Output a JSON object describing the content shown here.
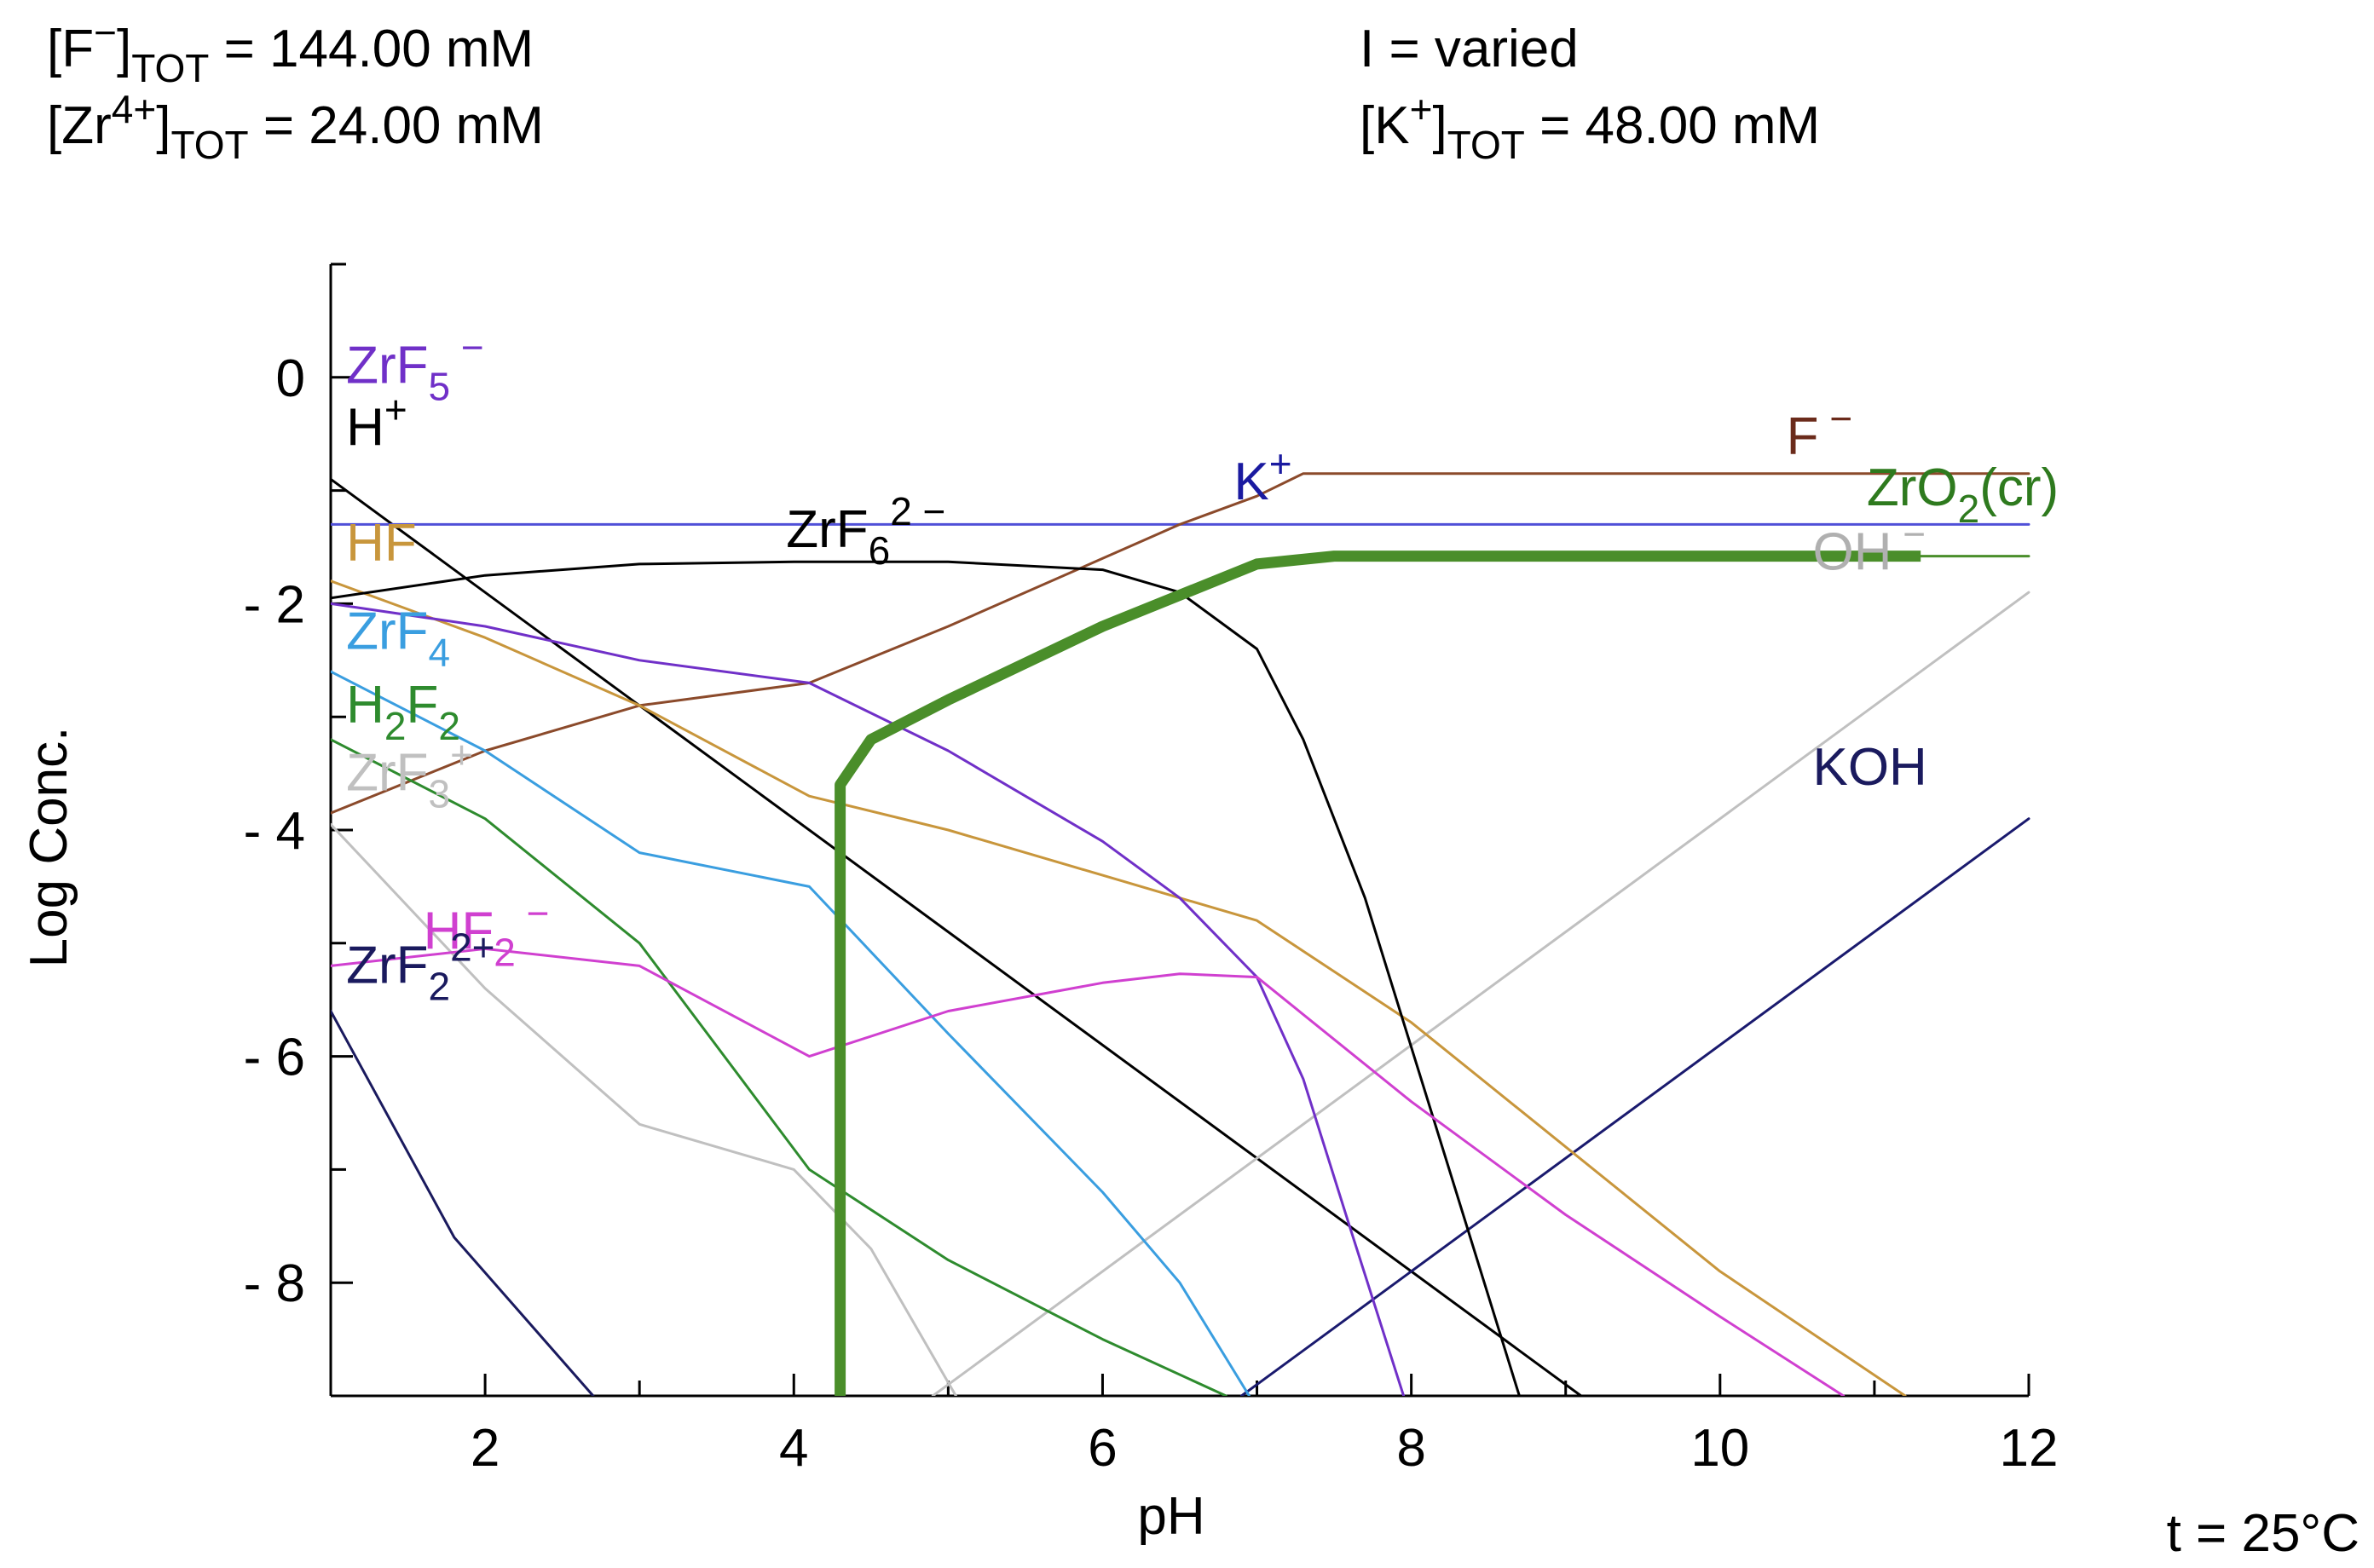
{
  "header": {
    "f_tot": {
      "base": "[F",
      "sup": "−",
      "close": "]",
      "sub": "TOT",
      "eq": " =  ",
      "value": "144.00 mM"
    },
    "zr_tot": {
      "base": "[Zr",
      "sup": "4+",
      "close": "]",
      "sub": "TOT",
      "eq": " =   ",
      "value": "24.00 mM"
    },
    "ionic": "I = varied",
    "k_tot": {
      "base": "[K",
      "sup": "+",
      "close": "]",
      "sub": "TOT",
      "eq": " =   ",
      "value": "48.00 mM"
    }
  },
  "temperature": "t = 25°C",
  "chart_data": {
    "type": "line",
    "title": "",
    "xlabel": "pH",
    "ylabel": "Log Conc.",
    "xlim": [
      1,
      12
    ],
    "ylim": [
      -9,
      1
    ],
    "xticks": [
      2,
      4,
      6,
      8,
      10,
      12
    ],
    "yticks": [
      0,
      -2,
      -4,
      -6,
      -8
    ],
    "ytick_labels": [
      "0",
      "- 2",
      "- 4",
      "- 6",
      "- 8"
    ],
    "xtick_labels": [
      "2",
      "4",
      "6",
      "8",
      "10",
      "12"
    ],
    "series": [
      {
        "name": "H+",
        "color": "#000000",
        "width": 3,
        "x": [
          1,
          9.1
        ],
        "y": [
          -0.9,
          -9.0
        ]
      },
      {
        "name": "OH-",
        "color": "#c0c0c0",
        "width": 3,
        "x": [
          4.9,
          12
        ],
        "y": [
          -9.0,
          -1.9
        ]
      },
      {
        "name": "K+",
        "color": "#5050d8",
        "width": 3,
        "x": [
          1,
          12
        ],
        "y": [
          -1.3,
          -1.3
        ]
      },
      {
        "name": "KOH",
        "color": "#1a1a6e",
        "width": 3,
        "x": [
          6.9,
          12
        ],
        "y": [
          -9.0,
          -3.9
        ]
      },
      {
        "name": "F-",
        "color": "#8b4a2b",
        "width": 3,
        "x": [
          1,
          2,
          3,
          4.1,
          5,
          6,
          6.5,
          7,
          7.3,
          12
        ],
        "y": [
          -3.85,
          -3.3,
          -2.9,
          -2.7,
          -2.2,
          -1.6,
          -1.3,
          -1.05,
          -0.85,
          -0.85
        ]
      },
      {
        "name": "HF",
        "color": "#c8963c",
        "width": 3,
        "x": [
          1,
          2,
          3,
          4.1,
          5,
          6,
          7,
          8,
          9,
          10,
          11.2
        ],
        "y": [
          -1.8,
          -2.3,
          -2.9,
          -3.7,
          -4.0,
          -4.4,
          -4.8,
          -5.7,
          -6.8,
          -7.9,
          -9.0
        ]
      },
      {
        "name": "ZrF6 2-",
        "color": "#000000",
        "width": 3,
        "x": [
          1,
          2,
          3,
          4,
          5,
          6,
          6.5,
          7,
          7.3,
          7.7,
          8.2,
          8.7
        ],
        "y": [
          -1.95,
          -1.75,
          -1.65,
          -1.63,
          -1.63,
          -1.7,
          -1.9,
          -2.4,
          -3.2,
          -4.6,
          -6.8,
          -9.0
        ]
      },
      {
        "name": "ZrF5 -",
        "color": "#7030c8",
        "width": 3,
        "x": [
          1,
          2,
          3,
          4.1,
          5,
          6,
          6.5,
          7,
          7.3,
          7.6,
          7.95
        ],
        "y": [
          -2.0,
          -2.2,
          -2.5,
          -2.7,
          -3.3,
          -4.1,
          -4.6,
          -5.3,
          -6.2,
          -7.5,
          -9.0
        ]
      },
      {
        "name": "ZrF4",
        "color": "#3a9ee0",
        "width": 3,
        "x": [
          1,
          2,
          3,
          4.1,
          5,
          6,
          6.5,
          6.95
        ],
        "y": [
          -2.6,
          -3.3,
          -4.2,
          -4.5,
          -5.8,
          -7.2,
          -8.0,
          -9.0
        ]
      },
      {
        "name": "H2F2",
        "color": "#2e8b2e",
        "width": 3,
        "x": [
          1,
          2,
          3,
          4.1,
          5,
          6,
          6.8
        ],
        "y": [
          -3.2,
          -3.9,
          -5.0,
          -7.0,
          -7.8,
          -8.5,
          -9.0
        ]
      },
      {
        "name": "ZrF3 +",
        "color": "#c0c0c0",
        "width": 3,
        "x": [
          1,
          2,
          3,
          4,
          4.5,
          5.05
        ],
        "y": [
          -3.95,
          -5.4,
          -6.6,
          -7.0,
          -7.7,
          -9.0
        ]
      },
      {
        "name": "HF2 -",
        "color": "#d040d0",
        "width": 3,
        "x": [
          1,
          2,
          3,
          4.1,
          5,
          6,
          6.5,
          7,
          8,
          9,
          10,
          10.8
        ],
        "y": [
          -5.2,
          -5.05,
          -5.2,
          -6.0,
          -5.6,
          -5.35,
          -5.27,
          -5.3,
          -6.4,
          -7.4,
          -8.3,
          -9.0
        ]
      },
      {
        "name": "ZrF2 2+",
        "color": "#1a1a5e",
        "width": 3,
        "x": [
          1,
          1.8,
          2.7
        ],
        "y": [
          -5.6,
          -7.6,
          -9.0
        ]
      },
      {
        "name": "ZrO2(cr)",
        "color": "#4a8e2a",
        "width": 13,
        "x": [
          4.3,
          4.3,
          4.5,
          5,
          6,
          7,
          7.5,
          11.3
        ],
        "y": [
          -9.0,
          -3.6,
          -3.2,
          -2.85,
          -2.2,
          -1.65,
          -1.58,
          -1.58
        ]
      },
      {
        "name": "ZrO2(cr) tail",
        "color": "#4a8e2a",
        "width": 3,
        "x": [
          11.3,
          12
        ],
        "y": [
          -1.58,
          -1.58
        ]
      }
    ],
    "labels": [
      {
        "base": "ZrF",
        "sub": "5",
        "sup": " −",
        "color": "#7030c8",
        "x": 1.1,
        "y": -0.05
      },
      {
        "base": "H",
        "sub": "",
        "sup": "+",
        "color": "#000000",
        "x": 1.1,
        "y": -0.6
      },
      {
        "base": "HF",
        "sub": "",
        "sup": "",
        "color": "#c8963c",
        "x": 1.1,
        "y": -1.62
      },
      {
        "base": "ZrF",
        "sub": "4",
        "sup": "",
        "color": "#3a9ee0",
        "x": 1.1,
        "y": -2.4
      },
      {
        "base": "H",
        "sub": "2",
        "sup": "",
        "color": "#2e8b2e",
        "x": 1.1,
        "y": -3.05,
        "base2": "F",
        "sub2": "2"
      },
      {
        "base": "ZrF",
        "sub": "3",
        "sup": "+",
        "color": "#c0c0c0",
        "x": 1.1,
        "y": -3.65
      },
      {
        "base": "HF",
        "sub": "2",
        "sup": " −",
        "color": "#d040d0",
        "x": 1.6,
        "y": -5.05
      },
      {
        "base": "ZrF",
        "sub": "2",
        "sup": "2+",
        "color": "#1a1a5e",
        "x": 1.1,
        "y": -5.35
      },
      {
        "base": "ZrF",
        "sub": "6",
        "sup": "2 −",
        "color": "#000000",
        "x": 3.95,
        "y": -1.5
      },
      {
        "base": "K",
        "sub": "",
        "sup": "+",
        "color": "#1a1aa0",
        "x": 6.85,
        "y": -1.08
      },
      {
        "base": "F",
        "sub": "",
        "sup": " −",
        "color": "#6b2b1b",
        "x": 10.43,
        "y": -0.68
      },
      {
        "base": "ZrO",
        "sub": "2",
        "sup": "",
        "color": "#2e7a1e",
        "x": 10.95,
        "y": -1.13,
        "tail": "(cr)"
      },
      {
        "base": "OH",
        "sub": "",
        "sup": " −",
        "color": "#b0b0b0",
        "x": 10.6,
        "y": -1.7
      },
      {
        "base": "KOH",
        "sub": "",
        "sup": "",
        "color": "#1a1a5e",
        "x": 10.6,
        "y": -3.6
      }
    ]
  }
}
